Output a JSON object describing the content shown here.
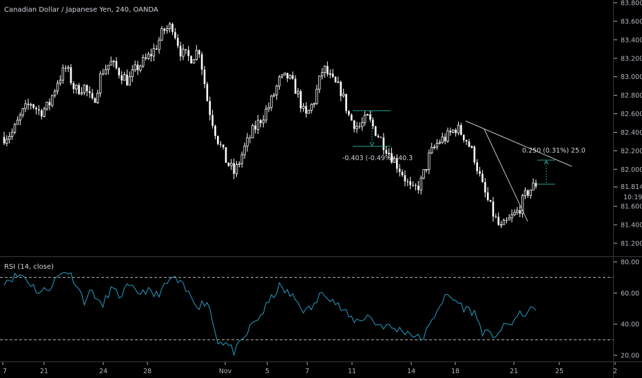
{
  "header": {
    "symbol_title": "Canadian Dollar / Japanese Yen, 240, OANDA"
  },
  "rsi_panel": {
    "title": "RSI (14, close)",
    "color": "#26a0c8"
  },
  "price_axis": {
    "ticks": [
      "83.800",
      "83.600",
      "83.400",
      "83.200",
      "83.000",
      "82.800",
      "82.600",
      "82.400",
      "82.200",
      "82.000",
      "81.600",
      "81.400",
      "81.200"
    ],
    "current_price": "81.814",
    "countdown": "10:19"
  },
  "rsi_axis": {
    "ticks": [
      "80.00",
      "60.00",
      "40.00",
      "20.00"
    ]
  },
  "time_axis": {
    "ticks": [
      "7",
      "21",
      "24",
      "28",
      "Nov",
      "5",
      "7",
      "11",
      "14",
      "18",
      "21",
      "25",
      "2"
    ]
  },
  "annotations": {
    "range_left": "-0.403 (-0.49%) -40.3",
    "range_right": "0.250 (0.31%) 25.0"
  },
  "colors": {
    "background": "#000000",
    "candle": "#ffffff",
    "wick": "#ffffff",
    "measure": "#26a69a",
    "trendline": "#c8c8c8"
  },
  "chart_data": [
    {
      "type": "candlestick",
      "title": "Canadian Dollar / Japanese Yen, 240, OANDA",
      "ylim": [
        81.1,
        83.85
      ],
      "close_path": [
        82.35,
        82.4,
        82.6,
        82.72,
        82.62,
        82.68,
        82.95,
        83.1,
        82.85,
        82.9,
        82.7,
        83.05,
        83.15,
        83.05,
        82.95,
        83.1,
        83.18,
        83.3,
        83.5,
        83.55,
        83.25,
        83.2,
        83.3,
        82.7,
        82.35,
        82.1,
        81.95,
        82.2,
        82.4,
        82.55,
        82.7,
        82.95,
        83.0,
        82.85,
        82.55,
        82.75,
        83.1,
        82.95,
        82.85,
        82.55,
        82.45,
        82.55,
        82.4,
        82.25,
        82.1,
        81.95,
        81.75,
        81.85,
        82.15,
        82.3,
        82.35,
        82.45,
        82.35,
        82.15,
        81.8,
        81.55,
        81.35,
        81.45,
        81.55,
        81.75,
        81.84
      ],
      "current_price": 81.814
    },
    {
      "type": "line",
      "title": "RSI (14, close)",
      "ylim": [
        15,
        85
      ],
      "levels": [
        70,
        30
      ],
      "values": [
        68,
        70,
        72,
        66,
        60,
        63,
        70,
        75,
        68,
        55,
        62,
        50,
        63,
        58,
        64,
        60,
        62,
        58,
        63,
        70,
        65,
        58,
        52,
        55,
        30,
        28,
        22,
        30,
        40,
        46,
        55,
        64,
        60,
        55,
        48,
        52,
        62,
        56,
        50,
        44,
        42,
        46,
        40,
        39,
        37,
        36,
        34,
        30,
        38,
        52,
        58,
        55,
        50,
        48,
        35,
        32,
        36,
        40,
        45,
        48,
        49
      ]
    }
  ]
}
